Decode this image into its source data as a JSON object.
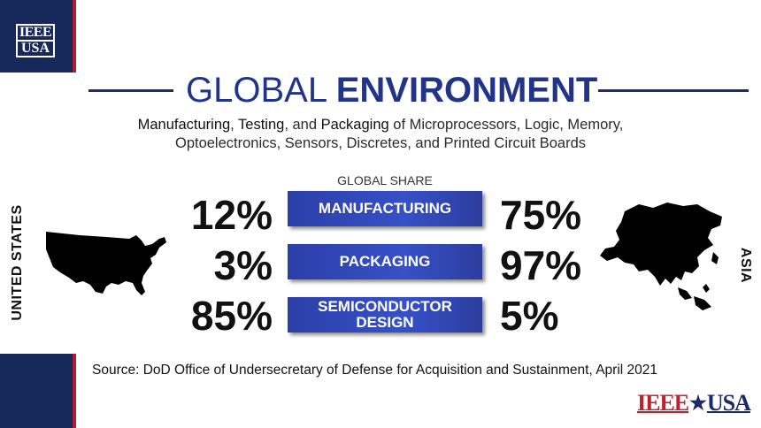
{
  "logo": {
    "line1": "IEEE",
    "line2": "USA"
  },
  "title": {
    "light": "GLOBAL",
    "bold": "ENVIRONMENT"
  },
  "subtitle": {
    "line1_parts": [
      "Manufacturing",
      ", ",
      "Testing",
      ", and ",
      "Packaging",
      " of Microprocessors, Logic, Memory,"
    ],
    "line2": "Optoelectronics, Sensors, Discretes, and Printed Circuit Boards"
  },
  "share_label": "GLOBAL SHARE",
  "regions": {
    "left": "UNITED STATES",
    "right": "ASIA"
  },
  "rows": [
    {
      "category": "MANUFACTURING",
      "us": "12%",
      "asia": "75%"
    },
    {
      "category": "PACKAGING",
      "us": "3%",
      "asia": "97%"
    },
    {
      "category_line1": "SEMICONDUCTOR",
      "category_line2": "DESIGN",
      "us": "85%",
      "asia": "5%"
    }
  ],
  "source": "Source: DoD Office of Undersecretary of Defense for Acquisition and Sustainment, April 2021",
  "footer_logo": {
    "left": "IEEE",
    "star": "★",
    "right": "USA"
  },
  "colors": {
    "navy": "#17285a",
    "accent_red": "#b31b34",
    "bar_blue": "#3650c7",
    "title_blue": "#22338a"
  }
}
